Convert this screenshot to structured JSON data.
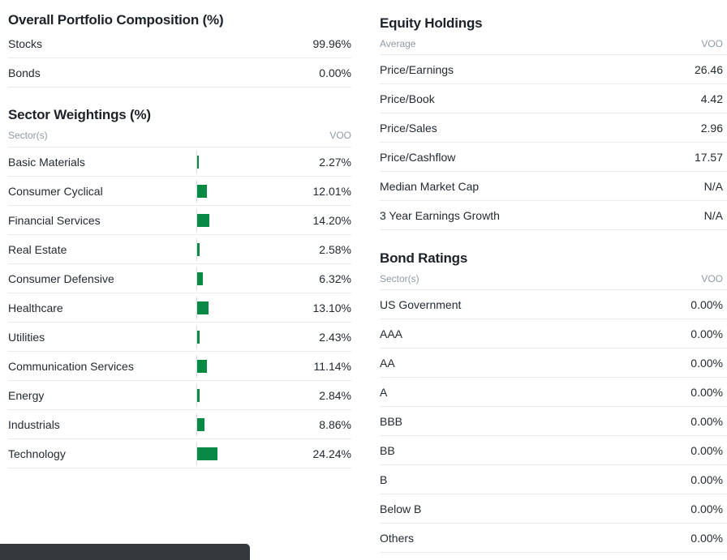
{
  "colors": {
    "bar_green": "#088a44",
    "divider": "#e7eaee",
    "heading_text": "#1d2228",
    "muted_text": "#909aa4",
    "snackbar_bg": "#34383c"
  },
  "portfolio_composition": {
    "title": "Overall Portfolio Composition (%)",
    "rows": [
      {
        "label": "Stocks",
        "value": "99.96%"
      },
      {
        "label": "Bonds",
        "value": "0.00%"
      }
    ]
  },
  "sector_weightings": {
    "title": "Sector Weightings (%)",
    "col_label": "Sector(s)",
    "col_value": "VOO",
    "rows": [
      {
        "label": "Basic Materials",
        "pct": 2.27,
        "value": "2.27%"
      },
      {
        "label": "Consumer Cyclical",
        "pct": 12.01,
        "value": "12.01%"
      },
      {
        "label": "Financial Services",
        "pct": 14.2,
        "value": "14.20%"
      },
      {
        "label": "Real Estate",
        "pct": 2.58,
        "value": "2.58%"
      },
      {
        "label": "Consumer Defensive",
        "pct": 6.32,
        "value": "6.32%"
      },
      {
        "label": "Healthcare",
        "pct": 13.1,
        "value": "13.10%"
      },
      {
        "label": "Utilities",
        "pct": 2.43,
        "value": "2.43%"
      },
      {
        "label": "Communication Services",
        "pct": 11.14,
        "value": "11.14%"
      },
      {
        "label": "Energy",
        "pct": 2.84,
        "value": "2.84%"
      },
      {
        "label": "Industrials",
        "pct": 8.86,
        "value": "8.86%"
      },
      {
        "label": "Technology",
        "pct": 24.24,
        "value": "24.24%"
      }
    ]
  },
  "equity_holdings": {
    "title": "Equity Holdings",
    "col_label": "Average",
    "col_value": "VOO",
    "rows": [
      {
        "label": "Price/Earnings",
        "value": "26.46"
      },
      {
        "label": "Price/Book",
        "value": "4.42"
      },
      {
        "label": "Price/Sales",
        "value": "2.96"
      },
      {
        "label": "Price/Cashflow",
        "value": "17.57"
      },
      {
        "label": "Median Market Cap",
        "value": "N/A"
      },
      {
        "label": "3 Year Earnings Growth",
        "value": "N/A"
      }
    ]
  },
  "bond_ratings": {
    "title": "Bond Ratings",
    "col_label": "Sector(s)",
    "col_value": "VOO",
    "rows": [
      {
        "label": "US Government",
        "value": "0.00%"
      },
      {
        "label": "AAA",
        "value": "0.00%"
      },
      {
        "label": "AA",
        "value": "0.00%"
      },
      {
        "label": "A",
        "value": "0.00%"
      },
      {
        "label": "BBB",
        "value": "0.00%"
      },
      {
        "label": "BB",
        "value": "0.00%"
      },
      {
        "label": "B",
        "value": "0.00%"
      },
      {
        "label": "Below B",
        "value": "0.00%"
      },
      {
        "label": "Others",
        "value": "0.00%"
      }
    ]
  }
}
